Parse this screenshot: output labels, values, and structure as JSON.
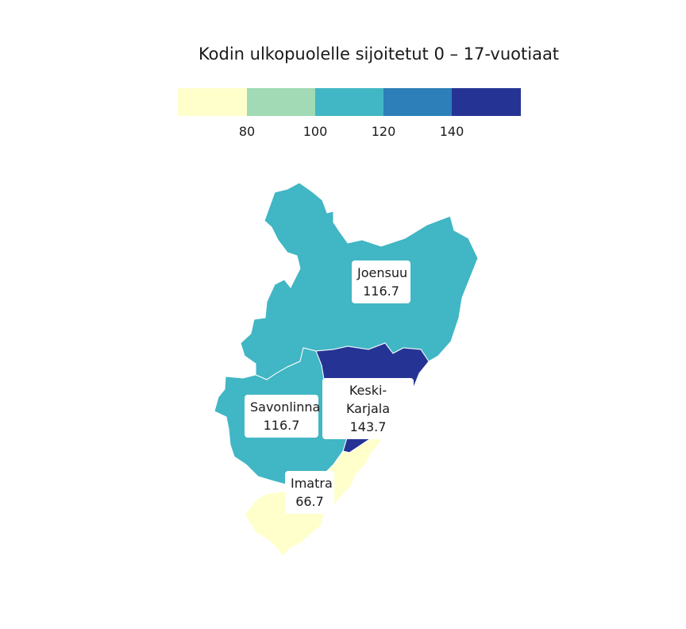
{
  "title": "Kodin ulkopuolelle sijoitetut 0 – 17-vuotiaat",
  "legend": {
    "swatches": [
      "#ffffcc",
      "#a1dab4",
      "#41b6c4",
      "#2c7fb8",
      "#253494"
    ],
    "ticks": [
      "80",
      "100",
      "120",
      "140"
    ]
  },
  "regions": [
    {
      "name": "Joensuu",
      "value": "116.7",
      "color": "#41b6c4"
    },
    {
      "name": "Keski-Karjala",
      "value": "143.7",
      "color": "#253494"
    },
    {
      "name": "Savonlinna",
      "value": "116.7",
      "color": "#41b6c4"
    },
    {
      "name": "Imatra",
      "value": "66.7",
      "color": "#ffffcc"
    }
  ]
}
